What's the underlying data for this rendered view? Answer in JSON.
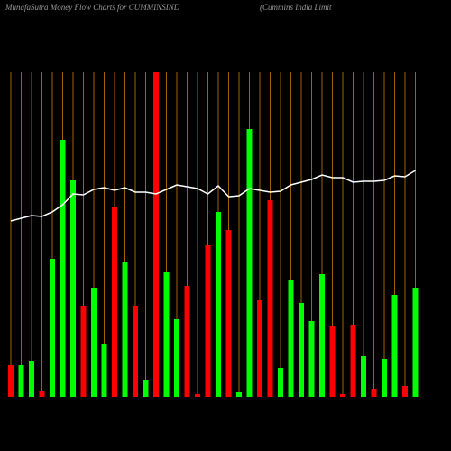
{
  "chart_data": {
    "type": "bar",
    "title": "MunafaSutra  Money Flow  Charts for CUMMINSIND",
    "subtitle": "(Cummins India  Limit",
    "values": [
      35,
      35,
      40,
      6,
      153,
      285,
      240,
      101,
      121,
      59,
      211,
      150,
      101,
      19,
      360,
      138,
      86,
      123,
      3,
      168,
      205,
      185,
      5,
      297,
      107,
      218,
      32,
      130,
      104,
      84,
      136,
      79,
      3,
      80,
      45,
      9,
      42,
      113,
      12,
      121
    ],
    "colors": [
      "#ff0000",
      "#00ff00",
      "#00ff00",
      "#ff0000",
      "#00ff00",
      "#00ff00",
      "#00ff00",
      "#ff0000",
      "#00ff00",
      "#00ff00",
      "#ff0000",
      "#00ff00",
      "#ff0000",
      "#00ff00",
      "#ff0000",
      "#00ff00",
      "#00ff00",
      "#ff0000",
      "#ff0000",
      "#ff0000",
      "#00ff00",
      "#ff0000",
      "#00ff00",
      "#00ff00",
      "#ff0000",
      "#ff0000",
      "#00ff00",
      "#00ff00",
      "#00ff00",
      "#00ff00",
      "#00ff00",
      "#ff0000",
      "#ff0000",
      "#ff0000",
      "#00ff00",
      "#ff0000",
      "#00ff00",
      "#00ff00",
      "#ff0000",
      "#00ff00"
    ],
    "line": {
      "color": "#ffffff",
      "values": [
        195,
        198,
        201,
        200,
        205,
        213,
        225,
        224,
        230,
        232,
        229,
        232,
        227,
        227,
        225,
        230,
        235,
        233,
        231,
        225,
        234,
        222,
        223,
        231,
        229,
        227,
        228,
        235,
        238,
        241,
        246,
        243,
        243,
        238,
        239,
        239,
        240,
        245,
        244,
        251
      ]
    },
    "ylim": [
      0,
      360
    ],
    "grid_color": "#cc7a00"
  }
}
